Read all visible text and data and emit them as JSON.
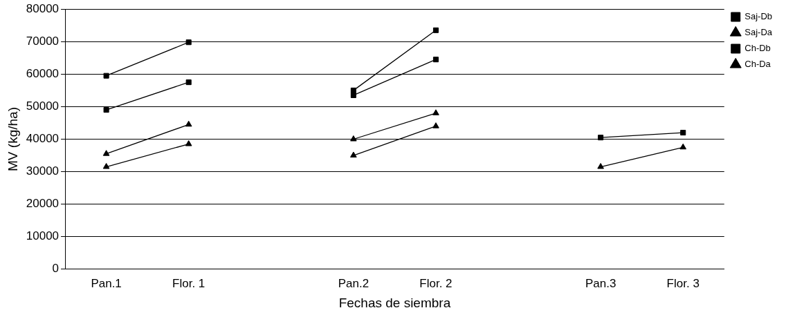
{
  "chart_data": {
    "type": "line",
    "xlabel": "Fechas de siembra",
    "ylabel": "MV (kg/ha)",
    "categories": [
      "Pan.1",
      "Flor. 1",
      null,
      "Pan.2",
      "Flor. 2",
      null,
      "Pan.3",
      "Flor. 3"
    ],
    "ylim": [
      0,
      80000
    ],
    "yticks": [
      0,
      10000,
      20000,
      30000,
      40000,
      50000,
      60000,
      70000,
      80000
    ],
    "grid": "y",
    "legend": "top right",
    "series": [
      {
        "name": "Saj-Db",
        "color": "#000000",
        "marker": "square",
        "values": [
          49000,
          57500,
          null,
          53500,
          64500,
          null,
          null,
          null
        ]
      },
      {
        "name": "Saj-Da",
        "color": "#000000",
        "marker": "triangle",
        "values": [
          31500,
          38500,
          null,
          35000,
          44000,
          null,
          null,
          null
        ]
      },
      {
        "name": "Ch-Db",
        "color": "#000000",
        "marker": "square",
        "values": [
          59500,
          69800,
          null,
          55000,
          73500,
          null,
          40500,
          42000
        ]
      },
      {
        "name": "Ch-Da",
        "color": "#000000",
        "marker": "triangle",
        "values": [
          35500,
          44500,
          null,
          40000,
          48000,
          null,
          31500,
          37500
        ]
      }
    ]
  }
}
